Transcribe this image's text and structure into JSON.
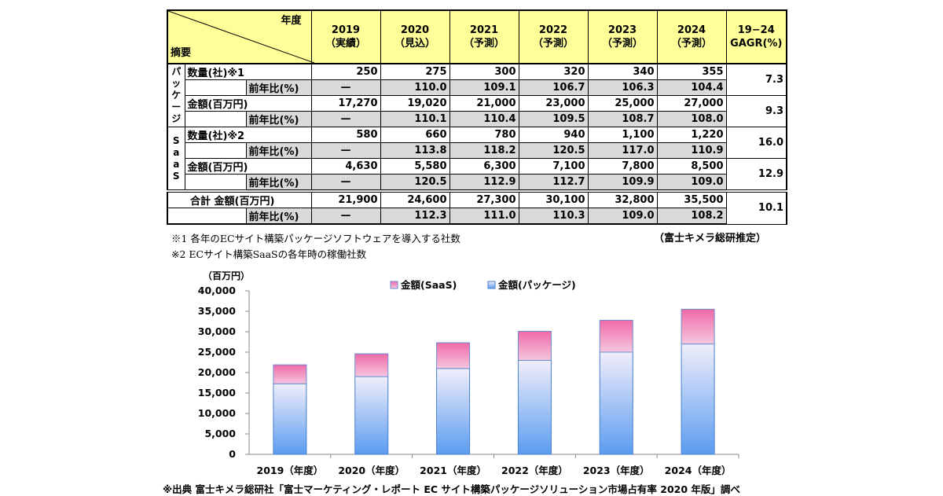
{
  "table": {
    "corner_top": "年度",
    "corner_bottom": "摘要",
    "years": [
      {
        "year": "2019",
        "status": "（実績）"
      },
      {
        "year": "2020",
        "status": "（見込）"
      },
      {
        "year": "2021",
        "status": "（予測）"
      },
      {
        "year": "2022",
        "status": "（予測）"
      },
      {
        "year": "2023",
        "status": "（予測）"
      },
      {
        "year": "2024",
        "status": "（予測）"
      }
    ],
    "cagr_header": [
      "19−24",
      "GAGR(%)"
    ],
    "sections": [
      {
        "label": "パッケージ",
        "rows": [
          {
            "label": "数量(社)※1",
            "values": [
              "250",
              "275",
              "300",
              "320",
              "340",
              "355"
            ],
            "yoy_label": "前年比(%)",
            "yoy": [
              "—",
              "110.0",
              "109.1",
              "106.7",
              "106.3",
              "104.4"
            ],
            "cagr": "7.3"
          },
          {
            "label": "金額(百万円)",
            "values": [
              "17,270",
              "19,020",
              "21,000",
              "23,000",
              "25,000",
              "27,000"
            ],
            "yoy_label": "前年比(%)",
            "yoy": [
              "—",
              "110.1",
              "110.4",
              "109.5",
              "108.7",
              "108.0"
            ],
            "cagr": "9.3"
          }
        ]
      },
      {
        "label": "SaaS",
        "rows": [
          {
            "label": "数量(社)※2",
            "values": [
              "580",
              "660",
              "780",
              "940",
              "1,100",
              "1,220"
            ],
            "yoy_label": "前年比(%)",
            "yoy": [
              "—",
              "113.8",
              "118.2",
              "120.5",
              "117.0",
              "110.9"
            ],
            "cagr": "16.0"
          },
          {
            "label": "金額(百万円)",
            "values": [
              "4,630",
              "5,580",
              "6,300",
              "7,100",
              "7,800",
              "8,500"
            ],
            "yoy_label": "前年比(%)",
            "yoy": [
              "—",
              "120.5",
              "112.9",
              "112.7",
              "109.9",
              "109.0"
            ],
            "cagr": "12.9"
          }
        ]
      }
    ],
    "total": {
      "label": "合計 金額(百万円)",
      "values": [
        "21,900",
        "24,600",
        "27,300",
        "30,100",
        "32,800",
        "35,500"
      ],
      "yoy_label": "前年比(%)",
      "yoy": [
        "—",
        "112.3",
        "111.0",
        "110.3",
        "109.0",
        "108.2"
      ],
      "cagr": "10.1"
    }
  },
  "notes": {
    "note1": "※1 各年のECサイト構築パッケージソフトウェアを導入する社数",
    "note2": "※2 ECサイト構築SaaSの各年時の稼働社数",
    "estimate": "（富士キメラ総研推定）"
  },
  "chart_data": {
    "type": "bar",
    "stacked": true,
    "ylabel": "（百万円）",
    "ylim": [
      0,
      40000
    ],
    "yticks": [
      "0",
      "5,000",
      "10,000",
      "15,000",
      "20,000",
      "25,000",
      "30,000",
      "35,000",
      "40,000"
    ],
    "categories": [
      "2019（年度）",
      "2020（年度）",
      "2021（年度）",
      "2022（年度）",
      "2023（年度）",
      "2024（年度）"
    ],
    "series": [
      {
        "name": "金額(パッケージ)",
        "values": [
          17270,
          19020,
          21000,
          23000,
          25000,
          27000
        ]
      },
      {
        "name": "金額(SaaS)",
        "values": [
          4630,
          5580,
          6300,
          7100,
          7800,
          8500
        ]
      }
    ],
    "legend": [
      "金額(SaaS)",
      "金額(パッケージ)"
    ],
    "legend_position": "top",
    "grid": false
  },
  "colors": {
    "header": "#ffff99",
    "yoy": "#d9d9d9",
    "saas": "#f06aa8",
    "package": "#5b9cf0"
  },
  "source": "※出典 富士キメラ総研社「富士マーケティング・レポート EC サイト構築パッケージソリューション市場占有率 2020 年版」調べ"
}
